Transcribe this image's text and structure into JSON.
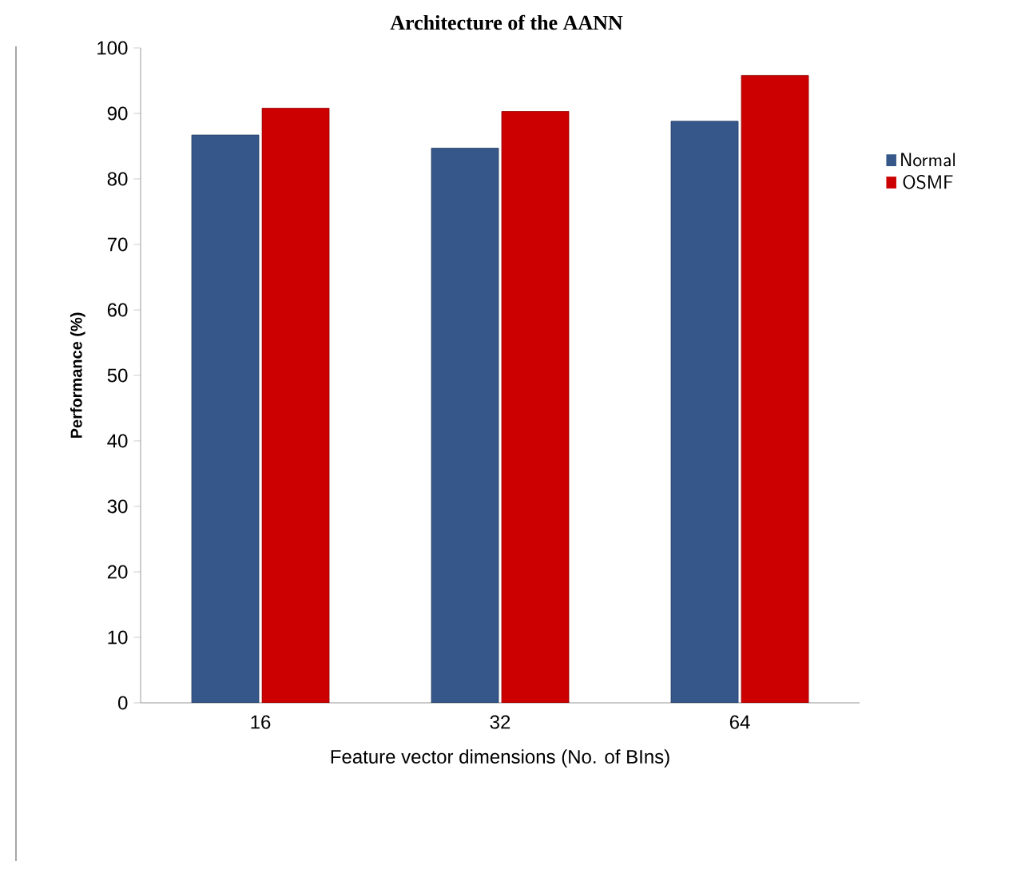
{
  "chart_data": {
    "type": "bar",
    "title": "Architecture of the AANN",
    "xlabel": "Feature vector dimensions (No. of BIns)",
    "ylabel": "Performance (%)",
    "categories": [
      "16",
      "32",
      "64"
    ],
    "series": [
      {
        "name": "Normal",
        "color": "#36578a",
        "values": [
          86.7,
          84.7,
          88.8
        ]
      },
      {
        "name": "OSMF",
        "color": "#cc0000",
        "values": [
          90.8,
          90.3,
          95.8
        ]
      }
    ],
    "ylim": [
      0,
      100
    ],
    "yticks": [
      0,
      10,
      20,
      30,
      40,
      50,
      60,
      70,
      80,
      90,
      100
    ],
    "grid": false,
    "legend": "right"
  }
}
